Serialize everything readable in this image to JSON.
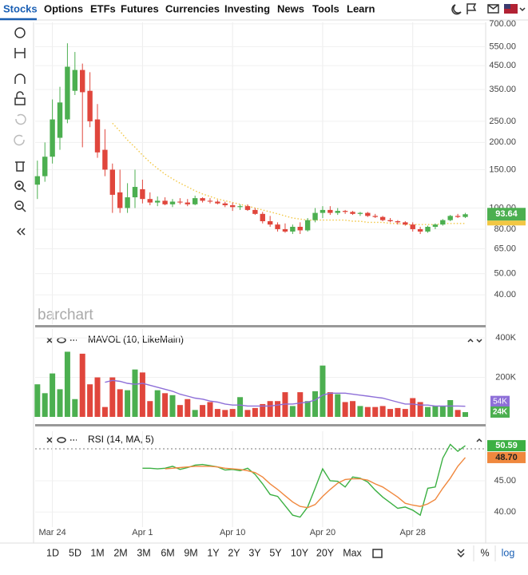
{
  "nav": {
    "items": [
      "Stocks",
      "Options",
      "ETFs",
      "Futures",
      "Currencies",
      "Investing",
      "News",
      "Tools",
      "Learn"
    ]
  },
  "watermark": "barchart",
  "chart_data": [
    {
      "type": "candlestick",
      "log_scale": true,
      "grid": true,
      "up_color": "#4caf50",
      "down_color": "#e0463c",
      "xlim": [
        -0.3,
        59.5
      ],
      "ylim": [
        29.3,
        711
      ],
      "yticks": [
        {
          "value": 700,
          "label": "700.00"
        },
        {
          "value": 550,
          "label": "550.00"
        },
        {
          "value": 450,
          "label": "450.00"
        },
        {
          "value": 350,
          "label": "350.00"
        },
        {
          "value": 250,
          "label": "250.00"
        },
        {
          "value": 200,
          "label": "200.00"
        },
        {
          "value": 150,
          "label": "150.00"
        },
        {
          "value": 100,
          "label": "100.00"
        },
        {
          "value": 80,
          "label": "80.00"
        },
        {
          "value": 65,
          "label": "65.00"
        },
        {
          "value": 50,
          "label": "50.00"
        },
        {
          "value": 40,
          "label": "40.00"
        }
      ],
      "candles": [
        {
          "open": 128,
          "high": 165,
          "low": 110,
          "close": 140
        },
        {
          "open": 140,
          "high": 200,
          "low": 132,
          "close": 172
        },
        {
          "open": 172,
          "high": 315,
          "low": 160,
          "close": 255
        },
        {
          "open": 210,
          "high": 360,
          "low": 185,
          "close": 305
        },
        {
          "open": 255,
          "high": 570,
          "low": 245,
          "close": 445
        },
        {
          "open": 345,
          "high": 520,
          "low": 330,
          "close": 430
        },
        {
          "open": 430,
          "high": 460,
          "low": 190,
          "close": 340
        },
        {
          "open": 345,
          "high": 420,
          "low": 235,
          "close": 250
        },
        {
          "open": 255,
          "high": 300,
          "low": 170,
          "close": 180
        },
        {
          "open": 185,
          "high": 230,
          "low": 140,
          "close": 150
        },
        {
          "open": 150,
          "high": 160,
          "low": 95,
          "close": 115
        },
        {
          "open": 118,
          "high": 150,
          "low": 95,
          "close": 100
        },
        {
          "open": 100,
          "high": 130,
          "low": 95,
          "close": 112
        },
        {
          "open": 112,
          "high": 150,
          "low": 100,
          "close": 125
        },
        {
          "open": 122,
          "high": 135,
          "low": 105,
          "close": 110
        },
        {
          "open": 110,
          "high": 118,
          "low": 103,
          "close": 106
        },
        {
          "open": 106,
          "high": 113,
          "low": 102,
          "close": 108
        },
        {
          "open": 108,
          "high": 112,
          "low": 103,
          "close": 104
        },
        {
          "open": 104,
          "high": 110,
          "low": 101,
          "close": 107
        },
        {
          "open": 107,
          "high": 111,
          "low": 104,
          "close": 106
        },
        {
          "open": 106,
          "high": 110,
          "low": 102,
          "close": 104
        },
        {
          "open": 104,
          "high": 114,
          "low": 103,
          "close": 111
        },
        {
          "open": 111,
          "high": 112,
          "low": 106,
          "close": 108
        },
        {
          "open": 108,
          "high": 111,
          "low": 105,
          "close": 107
        },
        {
          "open": 107,
          "high": 109,
          "low": 104,
          "close": 105
        },
        {
          "open": 105,
          "high": 107,
          "low": 101,
          "close": 103
        },
        {
          "open": 103,
          "high": 106,
          "low": 97,
          "close": 101
        },
        {
          "open": 101,
          "high": 104,
          "low": 98,
          "close": 102
        },
        {
          "open": 102,
          "high": 104,
          "low": 97,
          "close": 98
        },
        {
          "open": 98,
          "high": 100,
          "low": 93,
          "close": 94
        },
        {
          "open": 94,
          "high": 96,
          "low": 85,
          "close": 87
        },
        {
          "open": 87,
          "high": 92,
          "low": 82,
          "close": 84
        },
        {
          "open": 84,
          "high": 86,
          "low": 78,
          "close": 80
        },
        {
          "open": 80,
          "high": 85,
          "low": 77,
          "close": 78
        },
        {
          "open": 78,
          "high": 84,
          "low": 76,
          "close": 82
        },
        {
          "open": 82,
          "high": 86,
          "low": 76,
          "close": 79
        },
        {
          "open": 79,
          "high": 90,
          "low": 78,
          "close": 88
        },
        {
          "open": 88,
          "high": 100,
          "low": 86,
          "close": 95
        },
        {
          "open": 95,
          "high": 102,
          "low": 90,
          "close": 98
        },
        {
          "open": 98,
          "high": 102,
          "low": 93,
          "close": 95
        },
        {
          "open": 95,
          "high": 100,
          "low": 93,
          "close": 97
        },
        {
          "open": 97,
          "high": 98,
          "low": 94,
          "close": 96
        },
        {
          "open": 96,
          "high": 97,
          "low": 93,
          "close": 94
        },
        {
          "open": 94,
          "high": 96,
          "low": 92,
          "close": 95
        },
        {
          "open": 95,
          "high": 96,
          "low": 91,
          "close": 92
        },
        {
          "open": 92,
          "high": 94,
          "low": 90,
          "close": 91
        },
        {
          "open": 91,
          "high": 92,
          "low": 87,
          "close": 88
        },
        {
          "open": 88,
          "high": 90,
          "low": 86,
          "close": 87
        },
        {
          "open": 87,
          "high": 88,
          "low": 84,
          "close": 86
        },
        {
          "open": 86,
          "high": 87,
          "low": 83,
          "close": 84
        },
        {
          "open": 84,
          "high": 86,
          "low": 78,
          "close": 80
        },
        {
          "open": 80,
          "high": 82,
          "low": 76,
          "close": 78
        },
        {
          "open": 78,
          "high": 83,
          "low": 77,
          "close": 82
        },
        {
          "open": 82,
          "high": 85,
          "low": 80,
          "close": 84
        },
        {
          "open": 84,
          "high": 89,
          "low": 83,
          "close": 88
        },
        {
          "open": 88,
          "high": 93,
          "low": 87,
          "close": 92
        },
        {
          "open": 92,
          "high": 94,
          "low": 90,
          "close": 91
        },
        {
          "open": 91,
          "high": 95,
          "low": 90,
          "close": 93.64
        }
      ],
      "ma": {
        "color": "#f2c744",
        "values": [
          null,
          null,
          null,
          null,
          null,
          null,
          null,
          null,
          null,
          null,
          245,
          225,
          205,
          190,
          175,
          162,
          152,
          143,
          136,
          130,
          125,
          120,
          116,
          113,
          110,
          108,
          106,
          104,
          102,
          100,
          98,
          96,
          94,
          92,
          90,
          89,
          88,
          88,
          88,
          88,
          88,
          88,
          87,
          87,
          86,
          86,
          86,
          85,
          85,
          84,
          84,
          84,
          84,
          84,
          85,
          85,
          85,
          85
        ]
      }
    },
    {
      "type": "volume",
      "title": "MAVOL (10, LikeMain)",
      "grid": true,
      "xlim": [
        -0.3,
        59.5
      ],
      "ylim": [
        0,
        445000
      ],
      "yticks": [
        {
          "value": 400000,
          "label": "400K"
        },
        {
          "value": 200000,
          "label": "200K"
        }
      ],
      "values": [
        165000,
        120000,
        220000,
        140000,
        330000,
        90000,
        320000,
        165000,
        200000,
        50000,
        200000,
        140000,
        135000,
        240000,
        225000,
        80000,
        135000,
        120000,
        110000,
        60000,
        90000,
        35000,
        60000,
        75000,
        40000,
        35000,
        40000,
        100000,
        35000,
        45000,
        65000,
        80000,
        80000,
        125000,
        55000,
        125000,
        80000,
        130000,
        260000,
        125000,
        115000,
        75000,
        80000,
        55000,
        50000,
        50000,
        55000,
        40000,
        45000,
        40000,
        95000,
        75000,
        50000,
        55000,
        55000,
        85000,
        35000,
        24000
      ],
      "value_labels": {
        "57": "24K"
      },
      "series": [
        {
          "name": "MAVOL",
          "color": "#8e6fd8",
          "values": [
            null,
            null,
            null,
            null,
            null,
            null,
            null,
            null,
            null,
            175000,
            185000,
            180000,
            170000,
            165000,
            170000,
            160000,
            150000,
            140000,
            130000,
            115000,
            105000,
            95000,
            90000,
            80000,
            75000,
            65000,
            60000,
            60000,
            55000,
            55000,
            55000,
            55000,
            60000,
            65000,
            65000,
            70000,
            75000,
            85000,
            110000,
            120000,
            120000,
            120000,
            115000,
            110000,
            105000,
            100000,
            95000,
            85000,
            75000,
            65000,
            65000,
            60000,
            60000,
            55000,
            55000,
            55000,
            55000,
            54000
          ],
          "value_labels": {
            "57": "54K"
          }
        }
      ]
    },
    {
      "type": "line",
      "title": "RSI (14, MA, 5)",
      "grid": true,
      "xlim": [
        -0.3,
        59.5
      ],
      "ylim": [
        37.6,
        52.9
      ],
      "yticks": [
        {
          "value": 45,
          "label": "45.00"
        },
        {
          "value": 40,
          "label": "40.00"
        }
      ],
      "xticks": [
        {
          "value": 2,
          "label": "Mar 24"
        },
        {
          "value": 14,
          "label": "Apr 1"
        },
        {
          "value": 26,
          "label": "Apr 10"
        },
        {
          "value": 38,
          "label": "Apr 20"
        },
        {
          "value": 50,
          "label": "Apr 28"
        }
      ],
      "series": [
        {
          "name": "RSI",
          "color": "#3cb043",
          "label_text": "#ffffff",
          "values": [
            null,
            null,
            null,
            null,
            null,
            null,
            null,
            null,
            null,
            null,
            null,
            null,
            null,
            null,
            47.0,
            47.0,
            46.9,
            47.0,
            47.3,
            46.8,
            47.1,
            47.5,
            47.6,
            47.4,
            47.2,
            46.7,
            46.8,
            46.6,
            47.0,
            46.0,
            44.5,
            42.8,
            42.5,
            41.0,
            39.5,
            39.2,
            40.8,
            43.8,
            46.9,
            45.0,
            44.9,
            44.0,
            45.6,
            45.4,
            44.8,
            43.5,
            42.4,
            41.5,
            40.6,
            40.8,
            40.3,
            39.5,
            43.8,
            44.0,
            48.6,
            50.8,
            49.7,
            50.59
          ],
          "value_labels": {
            "57": "50.59"
          }
        },
        {
          "name": "MA",
          "color": "#f0883e",
          "label_text": "#222222",
          "values": [
            null,
            null,
            null,
            null,
            null,
            null,
            null,
            null,
            null,
            null,
            null,
            null,
            null,
            null,
            null,
            null,
            null,
            46.9,
            47.0,
            47.1,
            47.2,
            47.3,
            47.3,
            47.3,
            47.2,
            47.0,
            46.9,
            46.8,
            46.6,
            46.3,
            45.6,
            44.5,
            43.6,
            42.6,
            41.6,
            40.9,
            40.7,
            41.2,
            42.5,
            43.6,
            44.6,
            45.2,
            45.3,
            45.3,
            45.1,
            44.5,
            44.0,
            43.2,
            42.4,
            41.4,
            41.1,
            40.9,
            41.3,
            42.0,
            43.8,
            45.4,
            47.3,
            48.7
          ],
          "value_labels": {
            "57": "48.70"
          }
        }
      ]
    }
  ],
  "range_bar": {
    "items": [
      "1D",
      "5D",
      "1M",
      "2M",
      "3M",
      "6M",
      "9M",
      "1Y",
      "2Y",
      "3Y",
      "5Y",
      "10Y",
      "20Y",
      "Max"
    ],
    "percent": "%",
    "log": "log"
  }
}
